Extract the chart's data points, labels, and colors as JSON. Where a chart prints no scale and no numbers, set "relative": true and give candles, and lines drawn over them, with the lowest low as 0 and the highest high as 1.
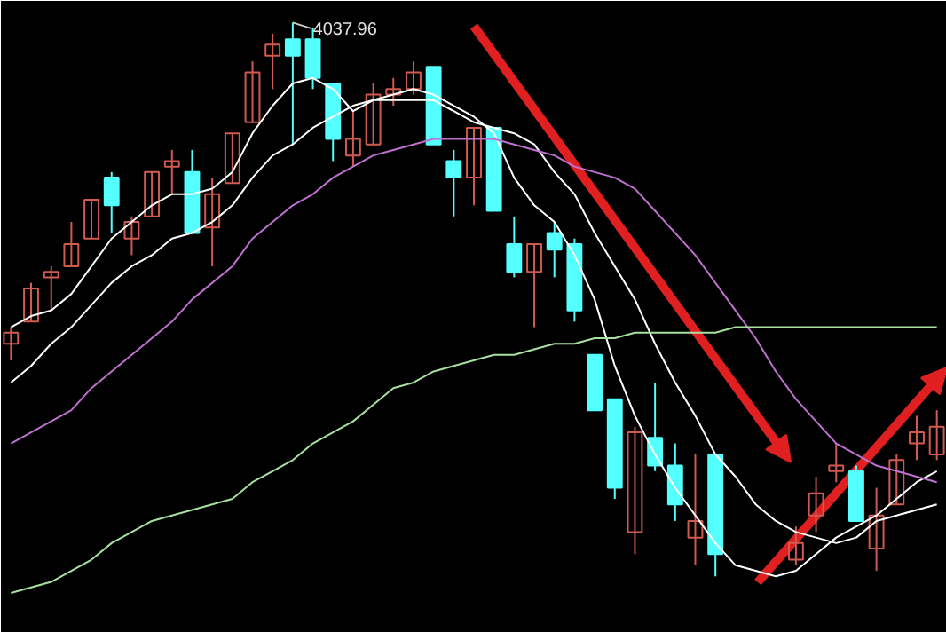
{
  "chart_data": {
    "type": "candlestick",
    "relative": true,
    "tick_labels": false,
    "categories": [
      null,
      null,
      null,
      null,
      null,
      null,
      null,
      null,
      null,
      null,
      null,
      null,
      null,
      null,
      null,
      null,
      null,
      null,
      null,
      null,
      null,
      null,
      null,
      null,
      null,
      null,
      null,
      null,
      null,
      null,
      null,
      null,
      null,
      null,
      null,
      null,
      null,
      null,
      null,
      null,
      null,
      null,
      null,
      null,
      null,
      null,
      null
    ],
    "ohlc": [
      [
        0.42,
        0.45,
        0.39,
        0.44
      ],
      [
        0.46,
        0.53,
        0.46,
        0.52
      ],
      [
        0.54,
        0.56,
        0.48,
        0.55
      ],
      [
        0.56,
        0.64,
        0.56,
        0.6
      ],
      [
        0.61,
        0.68,
        0.61,
        0.68
      ],
      [
        0.72,
        0.73,
        0.62,
        0.67
      ],
      [
        0.61,
        0.65,
        0.58,
        0.64
      ],
      [
        0.65,
        0.73,
        0.65,
        0.73
      ],
      [
        0.74,
        0.77,
        0.69,
        0.75
      ],
      [
        0.73,
        0.77,
        0.62,
        0.62
      ],
      [
        0.63,
        0.72,
        0.56,
        0.69
      ],
      [
        0.71,
        0.8,
        0.71,
        0.8
      ],
      [
        0.82,
        0.93,
        0.82,
        0.91
      ],
      [
        0.94,
        0.98,
        0.88,
        0.96
      ],
      [
        0.97,
        1,
        0.78,
        0.94
      ],
      [
        0.97,
        0.99,
        0.88,
        0.9
      ],
      [
        0.89,
        0.89,
        0.75,
        0.79
      ],
      [
        0.76,
        0.84,
        0.74,
        0.79
      ],
      [
        0.78,
        0.89,
        0.78,
        0.87
      ],
      [
        0.87,
        0.9,
        0.85,
        0.88
      ],
      [
        0.88,
        0.93,
        0.87,
        0.91
      ],
      [
        0.92,
        0.92,
        0.78,
        0.78
      ],
      [
        0.75,
        0.77,
        0.65,
        0.72
      ],
      [
        0.72,
        0.81,
        0.67,
        0.81
      ],
      [
        0.81,
        0.81,
        0.66,
        0.66
      ],
      [
        0.6,
        0.65,
        0.54,
        0.55
      ],
      [
        0.55,
        0.6,
        0.45,
        0.6
      ],
      [
        0.62,
        0.64,
        0.54,
        0.59
      ],
      [
        0.6,
        0.61,
        0.46,
        0.48
      ],
      [
        0.4,
        0.4,
        0.3,
        0.3
      ],
      [
        0.32,
        0.32,
        0.14,
        0.16
      ],
      [
        0.08,
        0.27,
        0.04,
        0.26
      ],
      [
        0.25,
        0.35,
        0.19,
        0.2
      ],
      [
        0.2,
        0.24,
        0.1,
        0.13
      ],
      [
        0.07,
        0.22,
        0.02,
        0.1
      ],
      [
        0.22,
        0.22,
        0,
        0.04
      ],
      null,
      null,
      null,
      [
        0.03,
        0.09,
        0.02,
        0.06
      ],
      [
        0.11,
        0.18,
        0.08,
        0.15
      ],
      [
        0.19,
        0.24,
        0.17,
        0.2
      ],
      [
        0.19,
        0.2,
        0.1,
        0.1
      ],
      [
        0.05,
        0.16,
        0.01,
        0.11
      ],
      [
        0.13,
        0.22,
        0.13,
        0.21
      ],
      [
        0.24,
        0.29,
        0.21,
        0.26
      ],
      [
        0.22,
        0.3,
        0.21,
        0.27
      ]
    ],
    "colors": [
      "#d05a50",
      "#d05a50",
      "#d05a50",
      "#d05a50",
      "#d05a50",
      "#54ffff",
      "#d05a50",
      "#d05a50",
      "#d05a50",
      "#54ffff",
      "#d05a50",
      "#d05a50",
      "#d05a50",
      "#d05a50",
      "#54ffff",
      "#54ffff",
      "#54ffff",
      "#d05a50",
      "#d05a50",
      "#d05a50",
      "#d05a50",
      "#54ffff",
      "#54ffff",
      "#d05a50",
      "#54ffff",
      "#54ffff",
      "#d05a50",
      "#54ffff",
      "#54ffff",
      "#54ffff",
      "#54ffff",
      "#d05a50",
      "#54ffff",
      "#54ffff",
      "#d05a50",
      "#54ffff",
      null,
      null,
      null,
      "#d05a50",
      "#d05a50",
      "#d05a50",
      "#54ffff",
      "#d05a50",
      "#d05a50",
      "#d05a50",
      "#d05a50"
    ],
    "series": [
      {
        "type": "line",
        "color": "#ffffff",
        "values": [
          0.45,
          0.47,
          0.48,
          0.51,
          0.56,
          0.61,
          0.64,
          0.67,
          0.69,
          0.69,
          0.7,
          0.73,
          0.8,
          0.85,
          0.89,
          0.9,
          0.88,
          0.84,
          0.86,
          0.87,
          0.88,
          0.87,
          0.85,
          0.83,
          0.8,
          0.72,
          0.67,
          0.64,
          0.58,
          0.5,
          0.38,
          0.29,
          0.22,
          0.16,
          0.11,
          0.06,
          0.02,
          0.01,
          0.0,
          0.01,
          0.04,
          0.07,
          0.09,
          0.11,
          0.14,
          0.17,
          0.19
        ]
      },
      {
        "type": "line",
        "color": "#ffffff",
        "values": [
          0.35,
          0.38,
          0.42,
          0.45,
          0.49,
          0.53,
          0.56,
          0.58,
          0.61,
          0.62,
          0.64,
          0.67,
          0.72,
          0.76,
          0.78,
          0.81,
          0.83,
          0.85,
          0.86,
          0.86,
          0.86,
          0.86,
          0.84,
          0.82,
          0.81,
          0.8,
          0.78,
          0.73,
          0.69,
          0.62,
          0.56,
          0.5,
          0.42,
          0.35,
          0.29,
          0.22,
          0.18,
          0.13,
          0.1,
          0.08,
          0.07,
          0.06,
          0.07,
          0.1,
          0.11,
          0.12,
          0.13
        ]
      },
      {
        "type": "line",
        "color": "#c070d0",
        "values": [
          0.24,
          0.26,
          0.28,
          0.3,
          0.34,
          0.37,
          0.4,
          0.43,
          0.46,
          0.5,
          0.53,
          0.56,
          0.61,
          0.64,
          0.67,
          0.69,
          0.72,
          0.74,
          0.76,
          0.77,
          0.78,
          0.79,
          0.79,
          0.79,
          0.79,
          0.78,
          0.77,
          0.76,
          0.74,
          0.73,
          0.72,
          0.7,
          0.66,
          0.62,
          0.58,
          0.53,
          0.48,
          0.43,
          0.37,
          0.32,
          0.28,
          0.24,
          0.22,
          0.2,
          0.19,
          0.18,
          0.17
        ]
      },
      {
        "type": "line",
        "color": "#a8e0a0",
        "values": [
          -0.03,
          -0.02,
          -0.01,
          0.01,
          0.03,
          0.06,
          0.08,
          0.1,
          0.11,
          0.12,
          0.13,
          0.14,
          0.17,
          0.19,
          0.21,
          0.24,
          0.26,
          0.28,
          0.31,
          0.34,
          0.35,
          0.37,
          0.38,
          0.39,
          0.4,
          0.4,
          0.41,
          0.42,
          0.42,
          0.43,
          0.43,
          0.44,
          0.44,
          0.44,
          0.44,
          0.44,
          0.45,
          0.45,
          0.45,
          0.45,
          0.45,
          0.45,
          0.45,
          0.45,
          0.45,
          0.45,
          0.45
        ]
      }
    ],
    "annotations": [
      "4037.96"
    ]
  }
}
